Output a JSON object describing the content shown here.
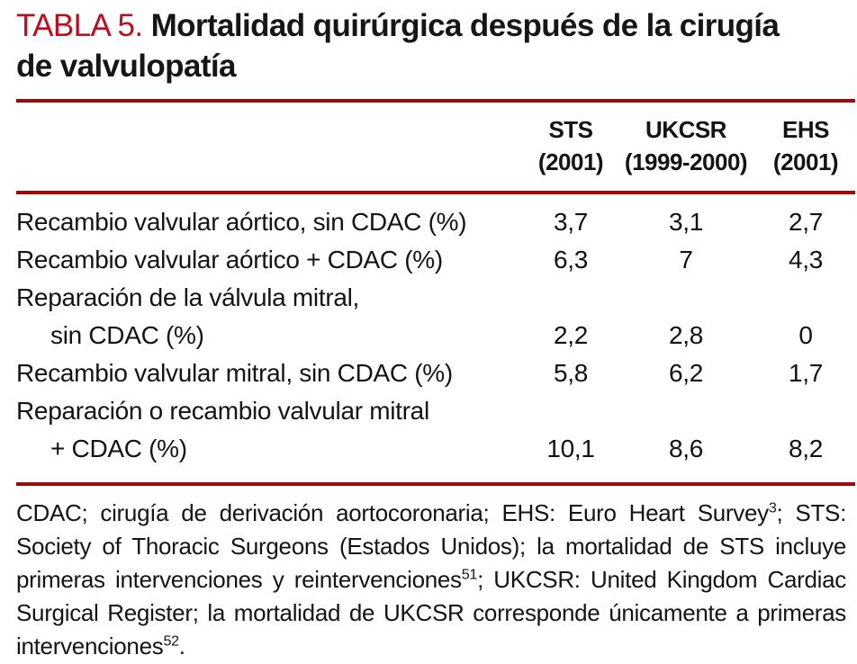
{
  "title": {
    "label": "TABLA 5.",
    "line1": "Mortalidad quirúrgica después de la cirugía",
    "line2": "de valvulopatía"
  },
  "colors": {
    "accent_red": "#bf0d1e",
    "rule_red": "#9b0a0a",
    "text": "#141414",
    "background": "#ffffff"
  },
  "table": {
    "columns": [
      {
        "id": "sts",
        "name": "STS",
        "period": "(2001)"
      },
      {
        "id": "ukcsr",
        "name": "UKCSR",
        "period": "(1999-2000)"
      },
      {
        "id": "ehs",
        "name": "EHS",
        "period": "(2001)"
      }
    ],
    "rows": [
      {
        "label_lines": [
          "Recambio valvular aórtico, sin CDAC (%)"
        ],
        "values": [
          "3,7",
          "3,1",
          "2,7"
        ]
      },
      {
        "label_lines": [
          "Recambio valvular aórtico + CDAC (%)"
        ],
        "values": [
          "6,3",
          "7",
          "4,3"
        ]
      },
      {
        "label_lines": [
          "Reparación de la válvula mitral,",
          "sin CDAC (%)"
        ],
        "values": [
          "2,2",
          "2,8",
          "0"
        ]
      },
      {
        "label_lines": [
          "Recambio valvular mitral, sin CDAC (%)"
        ],
        "values": [
          "5,8",
          "6,2",
          "1,7"
        ]
      },
      {
        "label_lines": [
          "Reparación o recambio valvular mitral",
          "+ CDAC (%)"
        ],
        "values": [
          "10,1",
          "8,6",
          "8,2"
        ]
      }
    ]
  },
  "footnote": {
    "segments": [
      {
        "t": "CDAC; cirugía de derivación aortocoronaria; EHS: Euro Heart Survey"
      },
      {
        "sup": "3"
      },
      {
        "t": "; STS: Society of Thoracic Surgeons (Estados Unidos); la mortalidad de STS incluye primeras intervenciones y reintervenciones"
      },
      {
        "sup": "51"
      },
      {
        "t": "; UKCSR: United Kingdom Cardiac Surgical Register; la mortalidad de UKCSR corresponde únicamente a primeras intervenciones"
      },
      {
        "sup": "52"
      },
      {
        "t": "."
      }
    ]
  }
}
